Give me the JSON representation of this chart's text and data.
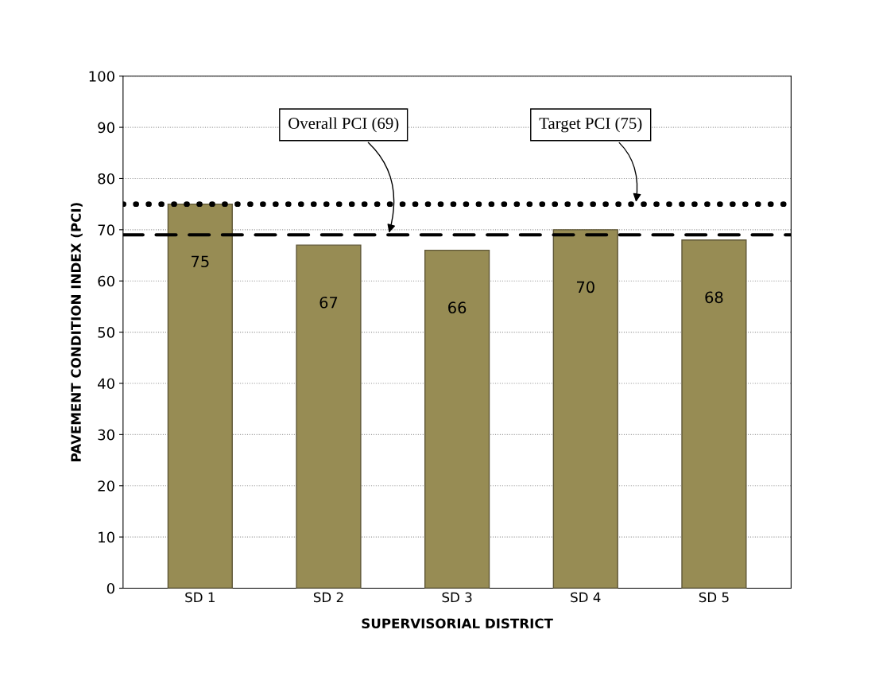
{
  "chart_data": {
    "type": "bar",
    "xlabel": "SUPERVISORIAL DISTRICT",
    "ylabel": "PAVEMENT CONDITION INDEX (PCI)",
    "categories": [
      "SD 1",
      "SD 2",
      "SD 3",
      "SD 4",
      "SD 5"
    ],
    "values": [
      75,
      67,
      66,
      70,
      68
    ],
    "color": "#978c54",
    "data_labels": true,
    "ylim": [
      0,
      100
    ],
    "yticks": [
      0,
      10,
      20,
      30,
      40,
      50,
      60,
      70,
      80,
      90,
      100
    ],
    "grid": "y",
    "ref_lines": [
      {
        "axis": "y",
        "value": 69,
        "label": "Overall PCI (69)",
        "color": "#000000",
        "line_style": "dashed"
      },
      {
        "axis": "y",
        "value": 75,
        "label": "Target PCI (75)",
        "color": "#000000",
        "line_style": "dotted"
      }
    ]
  }
}
